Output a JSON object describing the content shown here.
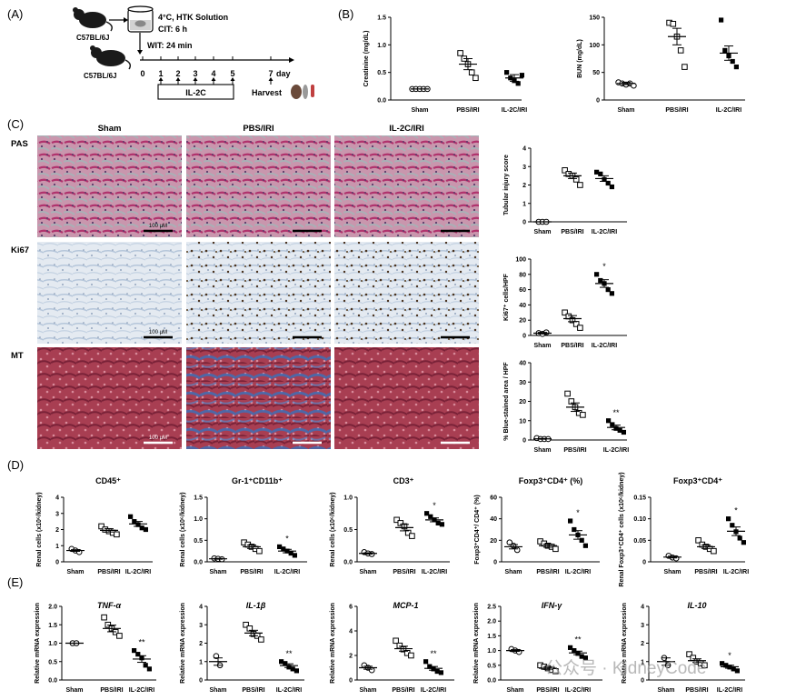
{
  "panel_labels": [
    "(A)",
    "(B)",
    "(C)",
    "(D)",
    "(E)"
  ],
  "panel_a": {
    "donor_label": "C57BL/6J",
    "recipient_label": "C57BL/6J",
    "solution_text": "4°C, HTK Solution",
    "cit_text": "CIT: 6 h",
    "wit_text": "WIT: 24 min",
    "timeline_days": [
      "0",
      "1",
      "2",
      "3",
      "4",
      "5",
      "7"
    ],
    "day_label": "day",
    "treatment_label": "IL-2C",
    "harvest_label": "Harvest"
  },
  "panel_c": {
    "columns": [
      "Sham",
      "PBS/IRI",
      "IL-2C/IRI"
    ],
    "rows": [
      "PAS",
      "Ki67",
      "MT"
    ],
    "scale_text": "100 μM",
    "tissue_colors": {
      "PAS": "#c996ad",
      "Ki67": "#dfe6ee",
      "MT": "#a83e52"
    }
  },
  "chart_data": [
    {
      "id": "creatinine",
      "type": "scatter",
      "ylabel": "Creatinine (mg/dL)",
      "categories": [
        "Sham",
        "PBS/IRI",
        "IL-2C/IRI"
      ],
      "ylim": [
        0,
        1.5
      ],
      "yticks": [
        "0.0",
        "0.5",
        "1.0",
        "1.5"
      ],
      "markers": [
        "circle",
        "square",
        "filled-square"
      ],
      "points": [
        [
          0.2,
          0.2,
          0.2,
          0.2,
          0.2
        ],
        [
          0.85,
          0.75,
          0.65,
          0.5,
          0.4
        ],
        [
          0.5,
          0.4,
          0.35,
          0.3,
          0.45
        ]
      ],
      "means": [
        0.2,
        0.65,
        0.4
      ],
      "sems": [
        0,
        0.1,
        0.06
      ],
      "sig": [
        "",
        "",
        ""
      ]
    },
    {
      "id": "bun",
      "type": "scatter",
      "ylabel": "BUN (mg/dL)",
      "categories": [
        "Sham",
        "PBS/IRI",
        "IL-2C/IRI"
      ],
      "ylim": [
        0,
        150
      ],
      "yticks": [
        "0",
        "50",
        "100",
        "150"
      ],
      "markers": [
        "circle",
        "square",
        "filled-square"
      ],
      "points": [
        [
          32,
          30,
          28,
          30,
          26
        ],
        [
          140,
          138,
          115,
          90,
          60
        ],
        [
          145,
          90,
          80,
          70,
          60
        ]
      ],
      "means": [
        30,
        115,
        85
      ],
      "sems": [
        2,
        15,
        13
      ],
      "sig": [
        "",
        "",
        ""
      ]
    },
    {
      "id": "tubular-injury",
      "type": "scatter",
      "ylabel": "Tubular injury score",
      "categories": [
        "Sham",
        "PBS/IRI",
        "IL-2C/IRI"
      ],
      "ylim": [
        0,
        4
      ],
      "yticks": [
        "0",
        "1",
        "2",
        "3",
        "4"
      ],
      "markers": [
        "circle",
        "square",
        "filled-square"
      ],
      "points": [
        [
          0,
          0,
          0
        ],
        [
          2.8,
          2.6,
          2.5,
          2.3,
          2.0
        ],
        [
          2.7,
          2.6,
          2.3,
          2.1,
          1.9
        ]
      ],
      "means": [
        0,
        2.5,
        2.35
      ],
      "sems": [
        0,
        0.15,
        0.15
      ],
      "sig": [
        "",
        "",
        ""
      ]
    },
    {
      "id": "ki67",
      "type": "scatter",
      "ylabel": "Ki67⁺ cells/HPF",
      "categories": [
        "Sham",
        "PBS/IRI",
        "IL-2C/IRI"
      ],
      "ylim": [
        0,
        100
      ],
      "yticks": [
        "0",
        "20",
        "40",
        "60",
        "80",
        "100"
      ],
      "markers": [
        "circle",
        "square",
        "filled-square"
      ],
      "points": [
        [
          3,
          2,
          4
        ],
        [
          30,
          25,
          20,
          15,
          10
        ],
        [
          80,
          72,
          68,
          60,
          55
        ]
      ],
      "means": [
        3,
        22,
        68
      ],
      "sems": [
        1,
        4,
        5
      ],
      "sig": [
        "",
        "",
        "*"
      ]
    },
    {
      "id": "blue-area",
      "type": "scatter",
      "ylabel": "% Blue-stained area / HPF",
      "categories": [
        "Sham",
        "PBS/IRI",
        "IL-2C/IRI"
      ],
      "ylim": [
        0,
        40
      ],
      "yticks": [
        "0",
        "10",
        "20",
        "30",
        "40"
      ],
      "markers": [
        "circle",
        "square",
        "filled-square"
      ],
      "points": [
        [
          1,
          0.5,
          0.5,
          0.5
        ],
        [
          24,
          20,
          17,
          14,
          13
        ],
        [
          10,
          8,
          6,
          5,
          4
        ]
      ],
      "means": [
        0.6,
        17,
        6.5
      ],
      "sems": [
        0.2,
        2.2,
        1.2
      ],
      "sig": [
        "",
        "",
        "**"
      ]
    },
    {
      "id": "cd45",
      "type": "scatter",
      "title": "CD45⁺",
      "ylabel": "Renal cells (x10⁶/kidney)",
      "categories": [
        "Sham",
        "PBS/IRI",
        "IL-2C/IRI"
      ],
      "ylim": [
        0,
        4
      ],
      "yticks": [
        "0",
        "1",
        "2",
        "3",
        "4"
      ],
      "markers": [
        "circle",
        "square",
        "filled-square"
      ],
      "points": [
        [
          0.8,
          0.7,
          0.6
        ],
        [
          2.2,
          2.0,
          1.9,
          1.8,
          1.7
        ],
        [
          2.8,
          2.5,
          2.3,
          2.1,
          2.0
        ]
      ],
      "means": [
        0.7,
        1.95,
        2.35
      ],
      "sems": [
        0.05,
        0.1,
        0.15
      ],
      "sig": [
        "",
        "",
        ""
      ]
    },
    {
      "id": "gr1",
      "type": "scatter",
      "title": "Gr-1⁺CD11b⁺",
      "ylabel": "Renal cells (x10⁶/kidney)",
      "categories": [
        "Sham",
        "PBS/IRI",
        "IL-2C/IRI"
      ],
      "ylim": [
        0,
        1.5
      ],
      "yticks": [
        "0.0",
        "0.5",
        "1.0",
        "1.5"
      ],
      "markers": [
        "circle",
        "square",
        "filled-square"
      ],
      "points": [
        [
          0.08,
          0.07,
          0.06
        ],
        [
          0.45,
          0.4,
          0.35,
          0.3,
          0.25
        ],
        [
          0.35,
          0.3,
          0.25,
          0.2,
          0.15
        ]
      ],
      "means": [
        0.07,
        0.35,
        0.25
      ],
      "sems": [
        0.01,
        0.04,
        0.04
      ],
      "sig": [
        "",
        "",
        "*"
      ]
    },
    {
      "id": "cd3",
      "type": "scatter",
      "title": "CD3⁺",
      "ylabel": "Renal cells (x10⁶/kidney)",
      "categories": [
        "Sham",
        "PBS/IRI",
        "IL-2C/IRI"
      ],
      "ylim": [
        0,
        1.0
      ],
      "yticks": [
        "0.0",
        "0.5",
        "1.0"
      ],
      "markers": [
        "circle",
        "square",
        "filled-square"
      ],
      "points": [
        [
          0.15,
          0.13,
          0.12
        ],
        [
          0.65,
          0.6,
          0.55,
          0.45,
          0.4
        ],
        [
          0.75,
          0.7,
          0.65,
          0.6,
          0.58
        ]
      ],
      "means": [
        0.13,
        0.53,
        0.65
      ],
      "sems": [
        0.01,
        0.05,
        0.03
      ],
      "sig": [
        "",
        "",
        "*"
      ]
    },
    {
      "id": "foxp3-pct",
      "type": "scatter",
      "title": "Foxp3⁺CD4⁺ (%)",
      "ylabel": "Foxp3⁺CD4⁺/ CD4⁺ (%)",
      "categories": [
        "Sham",
        "PBS/IRI",
        "IL-2C/IRI"
      ],
      "ylim": [
        0,
        60
      ],
      "yticks": [
        "0",
        "20",
        "40",
        "60"
      ],
      "markers": [
        "circle",
        "square",
        "filled-square"
      ],
      "points": [
        [
          18,
          15,
          11
        ],
        [
          19,
          17,
          15,
          14,
          12
        ],
        [
          38,
          30,
          25,
          20,
          15
        ]
      ],
      "means": [
        14,
        15,
        25
      ],
      "sems": [
        2,
        1.5,
        4
      ],
      "sig": [
        "",
        "",
        "*"
      ]
    },
    {
      "id": "foxp3-count",
      "type": "scatter",
      "title": "Foxp3⁺CD4⁺",
      "ylabel": "Renal Foxp3⁺CD4⁺ cells (x10⁶/kidney)",
      "categories": [
        "Sham",
        "PBS/IRI",
        "IL-2C/IRI"
      ],
      "ylim": [
        0,
        0.15
      ],
      "yticks": [
        "0",
        "0.05",
        "0.10",
        "0.15"
      ],
      "markers": [
        "circle",
        "square",
        "filled-square"
      ],
      "points": [
        [
          0.014,
          0.01,
          0.008
        ],
        [
          0.05,
          0.04,
          0.035,
          0.03,
          0.025
        ],
        [
          0.1,
          0.085,
          0.07,
          0.055,
          0.045
        ]
      ],
      "means": [
        0.011,
        0.035,
        0.071
      ],
      "sems": [
        0.002,
        0.004,
        0.01
      ],
      "sig": [
        "",
        "",
        "*"
      ]
    },
    {
      "id": "tnf",
      "type": "scatter",
      "title": "TNF-α",
      "ylabel": "Relative mRNA expression",
      "categories": [
        "Sham",
        "PBS/IRI",
        "IL-2C/IRI"
      ],
      "ylim": [
        0,
        2.0
      ],
      "yticks": [
        "0.0",
        "0.5",
        "1.0",
        "1.5",
        "2.0"
      ],
      "markers": [
        "circle",
        "square",
        "filled-square"
      ],
      "points": [
        [
          1.0,
          1.0
        ],
        [
          1.7,
          1.5,
          1.4,
          1.3,
          1.2
        ],
        [
          0.8,
          0.7,
          0.6,
          0.4,
          0.3
        ]
      ],
      "means": [
        1.0,
        1.4,
        0.57
      ],
      "sems": [
        0,
        0.09,
        0.09
      ],
      "sig": [
        "",
        "",
        "**"
      ]
    },
    {
      "id": "il1b",
      "type": "scatter",
      "title": "IL-1β",
      "ylabel": "Relative mRNA expression",
      "categories": [
        "Sham",
        "PBS/IRI",
        "IL-2C/IRI"
      ],
      "ylim": [
        0,
        4
      ],
      "yticks": [
        "0",
        "1",
        "2",
        "3",
        "4"
      ],
      "markers": [
        "circle",
        "square",
        "filled-square"
      ],
      "points": [
        [
          1.3,
          0.8
        ],
        [
          3.0,
          2.8,
          2.5,
          2.4,
          2.2
        ],
        [
          1.0,
          0.9,
          0.7,
          0.6,
          0.5
        ]
      ],
      "means": [
        1.0,
        2.55,
        0.78
      ],
      "sems": [
        0.2,
        0.15,
        0.1
      ],
      "sig": [
        "",
        "",
        "**"
      ]
    },
    {
      "id": "mcp1",
      "type": "scatter",
      "title": "MCP-1",
      "ylabel": "Relative mRNA expression",
      "categories": [
        "Sham",
        "PBS/IRI",
        "IL-2C/IRI"
      ],
      "ylim": [
        0,
        6
      ],
      "yticks": [
        "0",
        "2",
        "4",
        "6"
      ],
      "markers": [
        "circle",
        "square",
        "filled-square"
      ],
      "points": [
        [
          1.2,
          1.0,
          0.8
        ],
        [
          3.2,
          2.8,
          2.5,
          2.2,
          2.0
        ],
        [
          1.5,
          1.1,
          0.9,
          0.7,
          0.6
        ]
      ],
      "means": [
        1.0,
        2.55,
        0.95
      ],
      "sems": [
        0.12,
        0.2,
        0.15
      ],
      "sig": [
        "",
        "",
        "**"
      ]
    },
    {
      "id": "ifng",
      "type": "scatter",
      "title": "IFN-γ",
      "ylabel": "Relative mRNA expression",
      "categories": [
        "Sham",
        "PBS/IRI",
        "IL-2C/IRI"
      ],
      "ylim": [
        0,
        2.5
      ],
      "yticks": [
        "0.0",
        "0.5",
        "1.0",
        "1.5",
        "2.0",
        "2.5"
      ],
      "markers": [
        "circle",
        "square",
        "filled-square"
      ],
      "points": [
        [
          1.05,
          1.0,
          0.95
        ],
        [
          0.5,
          0.45,
          0.4,
          0.35,
          0.3
        ],
        [
          1.1,
          1.0,
          0.9,
          0.8,
          0.75
        ]
      ],
      "means": [
        1.0,
        0.4,
        0.92
      ],
      "sems": [
        0.03,
        0.04,
        0.06
      ],
      "sig": [
        "",
        "",
        "**"
      ]
    },
    {
      "id": "il10",
      "type": "scatter",
      "title": "IL-10",
      "ylabel": "Relative mRNA expression",
      "categories": [
        "Sham",
        "PBS/IRI",
        "IL-2C/IRI"
      ],
      "ylim": [
        0,
        4
      ],
      "yticks": [
        "0",
        "1",
        "2",
        "3",
        "4"
      ],
      "markers": [
        "circle",
        "square",
        "filled-square"
      ],
      "points": [
        [
          1.2,
          0.8
        ],
        [
          1.4,
          1.2,
          1.0,
          0.9,
          0.8
        ],
        [
          0.9,
          0.8,
          0.7,
          0.6,
          0.5
        ]
      ],
      "means": [
        1.0,
        1.05,
        0.72
      ],
      "sems": [
        0.2,
        0.1,
        0.08
      ],
      "sig": [
        "",
        "",
        "*"
      ]
    }
  ],
  "watermark": {
    "text": "公众号 · KidneyCode"
  }
}
